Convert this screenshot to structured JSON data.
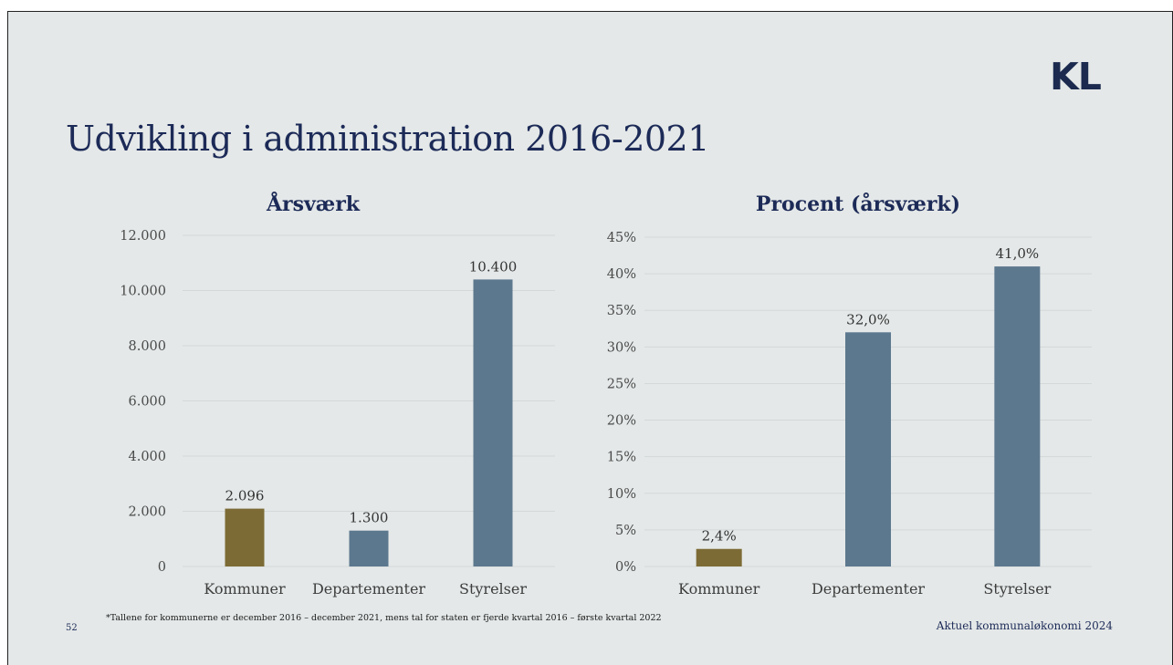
{
  "logo": "KL",
  "title": "Udvikling i administration 2016-2021",
  "colors": {
    "gold": "#7c6b35",
    "blue": "#5c788e",
    "grid": "#d3d8d8"
  },
  "chart_data": [
    {
      "type": "bar",
      "title": "Årsværk",
      "categories": [
        "Kommuner",
        "Departementer",
        "Styrelser"
      ],
      "values": [
        2096,
        1300,
        10400
      ],
      "data_labels": [
        "2.096",
        "1.300",
        "10.400"
      ],
      "bar_colors": [
        "#7c6b35",
        "#5c788e",
        "#5c788e"
      ],
      "ylim": [
        0,
        12000
      ],
      "yticks": [
        0,
        2000,
        4000,
        6000,
        8000,
        10000,
        12000
      ],
      "ytick_labels": [
        "0",
        "2.000",
        "4.000",
        "6.000",
        "8.000",
        "10.000",
        "12.000"
      ],
      "grid": true,
      "legend": "none",
      "xlabel": "",
      "ylabel": ""
    },
    {
      "type": "bar",
      "title": "Procent (årsværk)",
      "categories": [
        "Kommuner",
        "Departementer",
        "Styrelser"
      ],
      "values": [
        2.4,
        32.0,
        41.0
      ],
      "data_labels": [
        "2,4%",
        "32,0%",
        "41,0%"
      ],
      "bar_colors": [
        "#7c6b35",
        "#5c788e",
        "#5c788e"
      ],
      "ylim": [
        0,
        45
      ],
      "yticks": [
        0,
        5,
        10,
        15,
        20,
        25,
        30,
        35,
        40,
        45
      ],
      "ytick_labels": [
        "0%",
        "5%",
        "10%",
        "15%",
        "20%",
        "25%",
        "30%",
        "35%",
        "40%",
        "45%"
      ],
      "grid": true,
      "legend": "none",
      "xlabel": "",
      "ylabel": ""
    }
  ],
  "footnote": "*Tallene for kommunerne er december 2016 – december 2021, mens tal for staten er fjerde kvartal 2016 – første kvartal 2022",
  "page_number": "52",
  "source": "Aktuel kommunaløkonomi 2024"
}
